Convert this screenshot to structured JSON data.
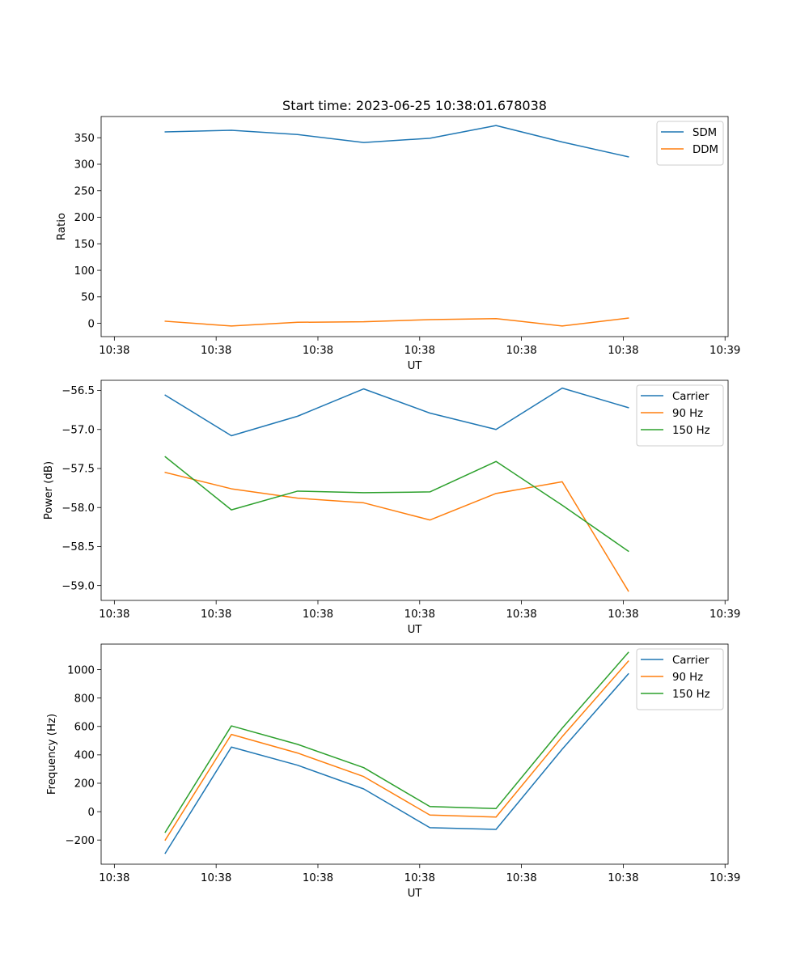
{
  "figure": {
    "title": "Start time: 2023-06-25 10:38:01.678038"
  },
  "colors": {
    "blue": "#1f77b4",
    "orange": "#ff7f0e",
    "green": "#2ca02c"
  },
  "chart_data": [
    {
      "type": "line",
      "title": "Start time: 2023-06-25 10:38:01.678038",
      "xlabel": "UT",
      "ylabel": "Ratio",
      "xticks": [
        "10:38",
        "10:38",
        "10:38",
        "10:38",
        "10:38",
        "10:38",
        "10:39"
      ],
      "xtick_positions": [
        0,
        1,
        2,
        3,
        4,
        5,
        6
      ],
      "xlim": [
        -0.13,
        6.03
      ],
      "x": [
        0.5,
        1.15,
        1.8,
        2.45,
        3.1,
        3.75,
        4.4,
        5.05
      ],
      "ylim": [
        -25,
        390
      ],
      "yticks": [
        0,
        50,
        100,
        150,
        200,
        250,
        300,
        350
      ],
      "legend": "top-right",
      "grid": false,
      "series": [
        {
          "name": "SDM",
          "color": "#1f77b4",
          "values": [
            361,
            364,
            356,
            341,
            349,
            373,
            342,
            314
          ]
        },
        {
          "name": "DDM",
          "color": "#ff7f0e",
          "values": [
            4,
            -5,
            2,
            3,
            7,
            9,
            -5,
            10
          ]
        }
      ]
    },
    {
      "type": "line",
      "xlabel": "UT",
      "ylabel": "Power (dB)",
      "xticks": [
        "10:38",
        "10:38",
        "10:38",
        "10:38",
        "10:38",
        "10:38",
        "10:39"
      ],
      "xtick_positions": [
        0,
        1,
        2,
        3,
        4,
        5,
        6
      ],
      "xlim": [
        -0.13,
        6.03
      ],
      "x": [
        0.5,
        1.15,
        1.8,
        2.45,
        3.1,
        3.75,
        4.4,
        5.05
      ],
      "ylim": [
        -59.19,
        -56.37
      ],
      "yticks": [
        -59.0,
        -58.5,
        -58.0,
        -57.5,
        -57.0,
        -56.5
      ],
      "yticklabels": [
        "−59.0",
        "−58.5",
        "−58.0",
        "−57.5",
        "−57.0",
        "−56.5"
      ],
      "legend": "top-right",
      "grid": false,
      "series": [
        {
          "name": "Carrier",
          "color": "#1f77b4",
          "values": [
            -56.56,
            -57.08,
            -56.83,
            -56.48,
            -56.79,
            -57.0,
            -56.47,
            -56.72
          ]
        },
        {
          "name": "90 Hz",
          "color": "#ff7f0e",
          "values": [
            -57.55,
            -57.76,
            -57.88,
            -57.94,
            -58.16,
            -57.82,
            -57.67,
            -59.07
          ]
        },
        {
          "name": "150 Hz",
          "color": "#2ca02c",
          "values": [
            -57.35,
            -58.03,
            -57.79,
            -57.81,
            -57.8,
            -57.41,
            -57.97,
            -58.56
          ]
        }
      ]
    },
    {
      "type": "line",
      "xlabel": "UT",
      "ylabel": "Frequency (Hz)",
      "xticks": [
        "10:38",
        "10:38",
        "10:38",
        "10:38",
        "10:38",
        "10:38",
        "10:39"
      ],
      "xtick_positions": [
        0,
        1,
        2,
        3,
        4,
        5,
        6
      ],
      "xlim": [
        -0.13,
        6.03
      ],
      "x": [
        0.5,
        1.15,
        1.8,
        2.45,
        3.1,
        3.75,
        4.4,
        5.05
      ],
      "ylim": [
        -370,
        1180
      ],
      "yticks": [
        -200,
        0,
        200,
        400,
        600,
        800,
        1000
      ],
      "yticklabels": [
        "−200",
        "0",
        "200",
        "400",
        "600",
        "800",
        "1000"
      ],
      "legend": "top-right",
      "grid": false,
      "series": [
        {
          "name": "Carrier",
          "color": "#1f77b4",
          "values": [
            -293,
            455,
            327,
            160,
            -113,
            -125,
            440,
            970
          ]
        },
        {
          "name": "90 Hz",
          "color": "#ff7f0e",
          "values": [
            -200,
            544,
            413,
            247,
            -24,
            -38,
            528,
            1060
          ]
        },
        {
          "name": "150 Hz",
          "color": "#2ca02c",
          "values": [
            -145,
            604,
            474,
            310,
            36,
            22,
            588,
            1121
          ]
        }
      ]
    }
  ]
}
